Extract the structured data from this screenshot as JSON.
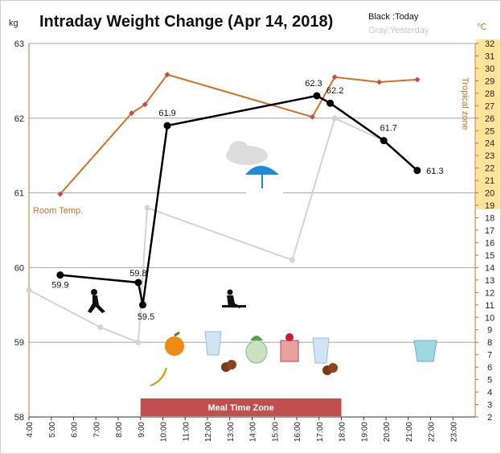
{
  "chart_data": {
    "type": "line",
    "title": "Intraday Weight Change (Apr 14, 2018)",
    "left_unit": "kg",
    "right_unit": "℃",
    "legend": {
      "today": "Black :Today",
      "yesterday": "Gray:Yesterday"
    },
    "y_left": {
      "min": 58,
      "max": 63,
      "ticks": [
        "58",
        "59",
        "60",
        "61",
        "62",
        "63"
      ]
    },
    "y_right": {
      "min": 2,
      "max": 32,
      "ticks": [
        "2",
        "3",
        "4",
        "5",
        "6",
        "7",
        "8",
        "9",
        "10",
        "11",
        "12",
        "13",
        "14",
        "15",
        "16",
        "17",
        "18",
        "19",
        "20",
        "21",
        "22",
        "23",
        "24",
        "25",
        "26",
        "27",
        "28",
        "29",
        "30",
        "31",
        "32"
      ]
    },
    "x_ticks": [
      "4:00",
      "5:00",
      "6:00",
      "7:00",
      "8:00",
      "9:00",
      "10:00",
      "11:00",
      "12:00",
      "13:00",
      "14:00",
      "15:00",
      "16:00",
      "17:00",
      "18:00",
      "19:00",
      "20:00",
      "21:00",
      "22:00",
      "23:00"
    ],
    "x_range": [
      4,
      24
    ],
    "series": [
      {
        "name": "Today",
        "color": "#000000",
        "x": [
          5.4,
          8.9,
          9.1,
          10.2,
          16.9,
          17.5,
          19.9,
          21.4
        ],
        "y": [
          59.9,
          59.8,
          59.5,
          61.9,
          62.3,
          62.2,
          61.7,
          61.3
        ],
        "labels": [
          "59.9",
          "59.8",
          "59.5",
          "61.9",
          "62.3",
          "62.2",
          "61.7",
          "61.3"
        ]
      },
      {
        "name": "Yesterday",
        "color": "#d3d3d3",
        "x": [
          4.0,
          7.2,
          8.9,
          9.3,
          15.8,
          17.7,
          19.9
        ],
        "y": [
          59.7,
          59.2,
          59.0,
          60.8,
          60.1,
          62.0,
          61.7
        ]
      },
      {
        "name": "Room Temp.",
        "color": "#d07020",
        "marker_color": "#c0504d",
        "x": [
          5.4,
          8.6,
          9.2,
          10.2,
          16.7,
          17.7,
          19.7,
          21.4
        ],
        "y": [
          19.9,
          26.4,
          27.1,
          29.5,
          26.1,
          29.3,
          28.9,
          29.1
        ]
      }
    ],
    "room_temp_label": "Room Temp.",
    "tropical_zone_label": "Tropical zone",
    "tropical_zone_range": [
      19,
      32
    ],
    "meal_time_zone": {
      "label": "Meal Time Zone",
      "range": [
        9.0,
        18.0
      ]
    },
    "grid": true,
    "annotations": [
      "walking-icon",
      "orange-icon",
      "banana-icon",
      "water-glass-icon",
      "cookies-icon",
      "turnip-icon",
      "cake-icon",
      "gardening-icon",
      "cloud-umbrella-icon",
      "yogurt-cup-icon"
    ]
  }
}
